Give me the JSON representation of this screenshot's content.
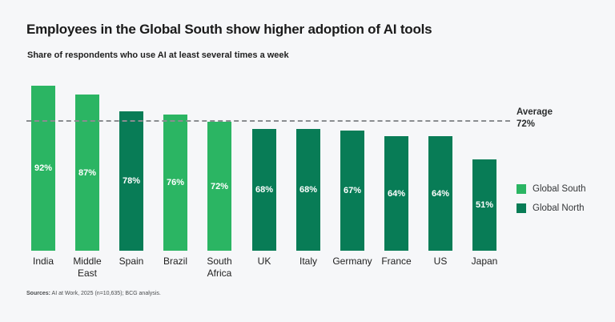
{
  "header": {
    "title": "Employees in the Global South show higher adoption of AI tools",
    "subtitle": "Share of respondents who use AI at least several times a week"
  },
  "colors": {
    "global_south": "#2bb563",
    "global_north": "#087c56",
    "background": "#f6f7f9",
    "average_line": "#8a8d90"
  },
  "chart_data": {
    "type": "bar",
    "title": "Employees in the Global South show higher adoption of AI tools",
    "subtitle": "Share of respondents who use AI at least several times a week",
    "categories": [
      "India",
      "Middle East",
      "Spain",
      "Brazil",
      "South Africa",
      "UK",
      "Italy",
      "Germany",
      "France",
      "US",
      "Japan"
    ],
    "values": [
      92,
      87,
      78,
      76,
      72,
      68,
      68,
      67,
      64,
      64,
      51
    ],
    "value_labels": [
      "92%",
      "87%",
      "78%",
      "76%",
      "72%",
      "68%",
      "68%",
      "67%",
      "64%",
      "64%",
      "51%"
    ],
    "groups": [
      "south",
      "south",
      "north",
      "south",
      "south",
      "north",
      "north",
      "north",
      "north",
      "north",
      "north"
    ],
    "average": 72,
    "ylim": [
      0,
      100
    ],
    "grid": false,
    "legend_position": "right",
    "xlabel": "",
    "ylabel": ""
  },
  "average_annotation": {
    "label": "Average",
    "value": "72%"
  },
  "legend": {
    "items": [
      {
        "label": "Global South",
        "group": "south",
        "color": "#2bb563"
      },
      {
        "label": "Global North",
        "group": "north",
        "color": "#087c56"
      }
    ]
  },
  "source": {
    "label": "Sources:",
    "text": " AI at Work, 2025 (n=10,635); BCG analysis."
  }
}
